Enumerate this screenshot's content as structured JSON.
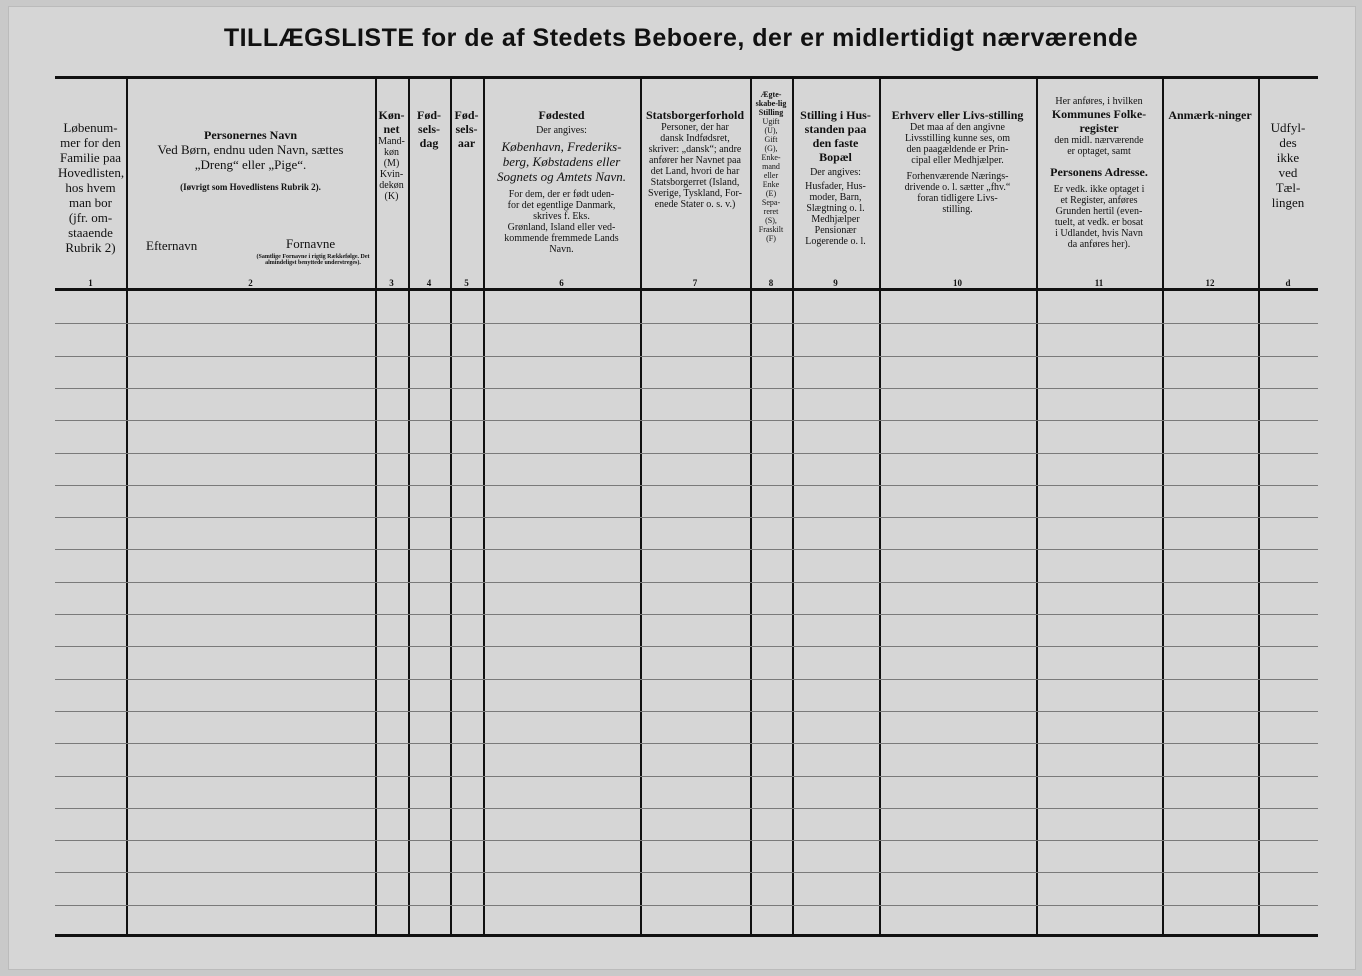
{
  "title": "TILLÆGSLISTE for de af Stedets Beboere, der er midlertidigt nærværende",
  "columns": [
    {
      "num": "1",
      "lines": [
        "Løbenum-",
        "mer for den",
        "Familie paa",
        "Hovedlisten,",
        "hos hvem",
        "man bor",
        "(jfr. om-",
        "staaende",
        "Rubrik 2)"
      ]
    },
    {
      "num": "2",
      "heading": "Personernes Navn",
      "lines": [
        "Ved Børn, endnu uden Navn, sættes",
        "„Dreng“ eller „Pige“."
      ],
      "note": "(Iøvrigt som Hovedlistens Rubrik 2).",
      "sub_left": "Efternavn",
      "sub_right": "Fornavne",
      "sub_right_note": "(Samtlige Fornavne i rigtig Rækkefølge. Det almindeligst benyttede understreges)."
    },
    {
      "num": "3",
      "heading": "Køn-net",
      "lines": [
        "Mand-",
        "køn",
        "(M)",
        "Kvin-",
        "dekøn",
        "(K)"
      ]
    },
    {
      "num": "4",
      "heading": "Fød-sels-dag",
      "lines": []
    },
    {
      "num": "5",
      "heading": "Fød-sels-aar",
      "lines": []
    },
    {
      "num": "6",
      "heading": "Fødested",
      "sub": "Der angives:",
      "lines": [
        "København, Frederiks-",
        "berg, Købstadens eller",
        "Sognets og Amtets Navn."
      ],
      "note": [
        "For dem, der er født uden-",
        "for det egentlige Danmark,",
        "skrives f. Eks.",
        "Grønland, Island eller ved-",
        "kommende fremmede Lands",
        "Navn."
      ]
    },
    {
      "num": "7",
      "heading": "Statsborgerforhold",
      "lines": [
        "Personer, der har",
        "dansk Indfødsret,",
        "skriver: „dansk“; andre",
        "anfører her Navnet paa",
        "det Land, hvori de har",
        "Statsborgerret (Island,",
        "Sverige, Tyskland, For-",
        "enede Stater o. s. v.)"
      ]
    },
    {
      "num": "8",
      "heading": "Ægte-skabe-lig Stilling",
      "lines": [
        "Ugift",
        "(U),",
        "Gift",
        "(G),",
        "Enke-",
        "mand",
        "eller",
        "Enke",
        "(E)",
        "Sepa-",
        "reret",
        "(S),",
        "Fraskilt",
        "(F)"
      ]
    },
    {
      "num": "9",
      "heading": "Stilling i Hus-standen paa den faste Bopæl",
      "sub": "Der angives:",
      "lines": [
        "Husfader, Hus-",
        "moder, Barn,",
        "Slægtning o. l.",
        "Medhjælper",
        "Pensionær",
        "Logerende o. l."
      ]
    },
    {
      "num": "10",
      "heading": "Erhverv eller Livs-stilling",
      "lines": [
        "Det maa af den angivne",
        "Livsstilling kunne ses, om",
        "den paagældende er Prin-",
        "cipal eller Medhjælper."
      ],
      "note": [
        "Forhenværende Nærings-",
        "drivende o. l. sætter „fhv.“",
        "foran tidligere Livs-",
        "stilling."
      ]
    },
    {
      "num": "11",
      "pre": "Her anføres, i hvilken",
      "heading": "Kommunes Folke-register",
      "lines": [
        "den midl. nærværende",
        "er optaget, samt"
      ],
      "heading2": "Personens Adresse.",
      "note": [
        "Er vedk. ikke optaget i",
        "et Register, anføres",
        "Grunden hertil (even-",
        "tuelt, at vedk. er bosat",
        "i Udlandet, hvis Navn",
        "da anføres her)."
      ]
    },
    {
      "num": "12",
      "heading": "Anmærk-ninger",
      "lines": []
    },
    {
      "num": "d",
      "lines": [
        "Udfyl-",
        "des",
        "ikke",
        "ved",
        "Tæl-",
        "lingen"
      ]
    }
  ]
}
